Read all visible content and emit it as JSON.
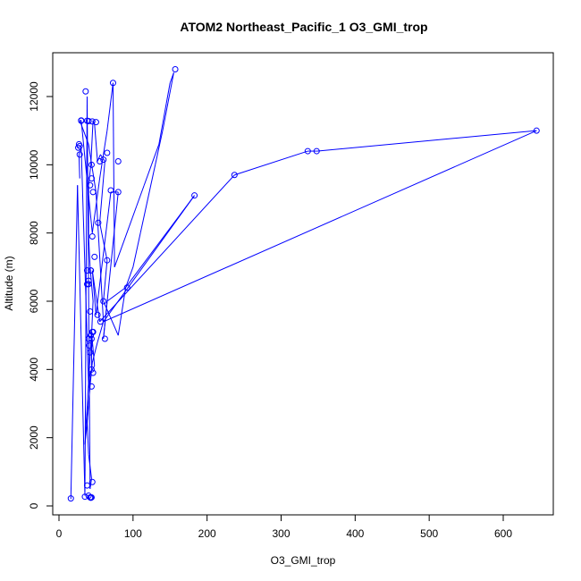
{
  "chart_data": {
    "type": "scatter",
    "title": "ATOM2 Northeast_Pacific_1 O3_GMI_trop",
    "xlabel": "O3_GMI_trop",
    "ylabel": "Altitude (m)",
    "xlim": [
      0,
      660
    ],
    "ylim": [
      0,
      13000
    ],
    "x_ticks": [
      0,
      100,
      200,
      300,
      400,
      500,
      600
    ],
    "y_ticks": [
      0,
      2000,
      4000,
      6000,
      8000,
      10000,
      12000
    ],
    "grid": false,
    "legend": "none",
    "color": "#0000ff",
    "series": [
      {
        "mode": "lines+markers",
        "x": [
          16,
          25,
          35,
          38,
          42,
          44,
          40,
          38,
          44,
          44,
          46,
          42,
          40,
          40,
          43,
          46,
          48,
          52,
          56,
          62,
          55,
          65,
          60,
          70,
          80,
          90,
          100,
          110,
          120,
          130,
          140,
          155,
          150,
          145,
          140,
          135,
          125,
          115,
          105,
          95,
          85,
          75,
          73,
          65,
          55,
          45,
          30,
          28,
          40,
          42,
          50,
          60,
          183,
          90,
          65,
          60,
          80,
          70,
          50,
          45,
          55,
          237,
          336,
          348,
          645,
          60,
          52,
          45,
          42,
          40,
          38,
          35,
          44,
          46,
          48,
          42,
          40,
          30,
          27,
          28
        ],
        "y": [
          200,
          9400,
          300,
          12000,
          500,
          800,
          1500,
          2500,
          4000,
          5000,
          6000,
          7000,
          7900,
          9400,
          10000,
          11300,
          11200,
          10100,
          10300,
          10100,
          8300,
          7200,
          6000,
          5500,
          5000,
          6400,
          7000,
          8000,
          9000,
          10000,
          11000,
          12700,
          12400,
          11800,
          11200,
          10600,
          10000,
          9400,
          8800,
          8200,
          7600,
          7000,
          12400,
          11000,
          9600,
          8000,
          11300,
          11300,
          10600,
          10300,
          9200,
          5400,
          9100,
          6400,
          6000,
          4900,
          9200,
          9200,
          5600,
          6900,
          5400,
          9700,
          10400,
          10400,
          11000,
          5400,
          4800,
          4200,
          3600,
          3000,
          2400,
          1800,
          5100,
          4600,
          4100,
          3900,
          3500,
          10500,
          10300,
          9600
        ]
      }
    ],
    "markers": {
      "x": [
        16,
        35,
        42,
        43,
        44,
        40,
        38,
        45,
        44,
        46,
        42,
        40,
        43,
        45,
        48,
        52,
        56,
        62,
        65,
        60,
        80,
        92,
        183,
        237,
        336,
        348,
        645,
        157,
        73,
        36,
        30,
        30,
        38,
        40,
        45,
        50,
        27,
        28,
        26,
        28,
        44,
        42,
        44,
        46,
        38,
        38,
        40,
        43,
        55,
        60,
        65,
        80,
        70,
        53,
        45,
        43,
        42,
        44,
        46,
        44,
        41,
        40
      ],
      "y": [
        220,
        270,
        250,
        240,
        250,
        300,
        600,
        700,
        4900,
        5100,
        5700,
        6500,
        6900,
        7900,
        7300,
        5600,
        5400,
        4900,
        7200,
        6000,
        10100,
        6400,
        9100,
        9700,
        10400,
        10400,
        11000,
        12800,
        12400,
        12150,
        11300,
        11290,
        11290,
        11280,
        11270,
        11250,
        10600,
        10550,
        10500,
        10300,
        9600,
        9400,
        10000,
        9200,
        6900,
        6500,
        6600,
        6900,
        10100,
        10150,
        10350,
        9200,
        9250,
        8300,
        5100,
        5000,
        4500,
        4000,
        3900,
        3500,
        4700,
        4900
      ]
    }
  }
}
